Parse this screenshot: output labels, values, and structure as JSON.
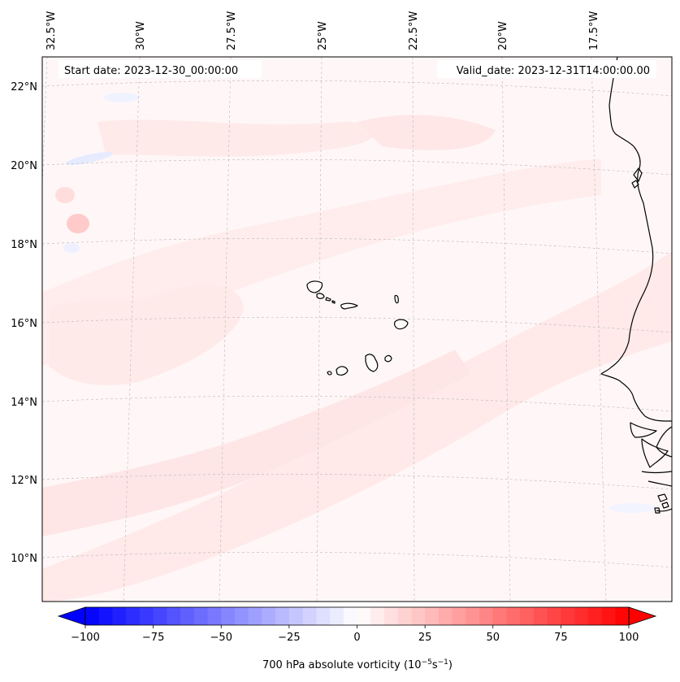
{
  "map": {
    "start_date_text": "Start date: 2023-12-30_00:00:00",
    "valid_date_text": "Valid_date: 2023-12-31T14:00:00.00",
    "lon_labels": [
      "32.5°W",
      "30°W",
      "27.5°W",
      "25°W",
      "22.5°W",
      "20°W",
      "17.5°W"
    ],
    "lat_labels": [
      "22°N",
      "20°N",
      "18°N",
      "16°N",
      "14°N",
      "12°N",
      "10°N"
    ],
    "field": "700 hPa absolute vorticity",
    "colors": {
      "negative": "#0000ff",
      "neutral": "#ffffff",
      "positive": "#ff0000",
      "coast": "#000000"
    }
  },
  "colorbar": {
    "label_main": "700 hPa absolute vorticity (10",
    "label_exp1": "−5",
    "label_mid": "s",
    "label_exp2": "−1",
    "label_end": ")",
    "tick_labels": [
      "−100",
      "−75",
      "−50",
      "−25",
      "0",
      "25",
      "50",
      "75",
      "100"
    ],
    "min": -100,
    "max": 100,
    "step": 5
  }
}
